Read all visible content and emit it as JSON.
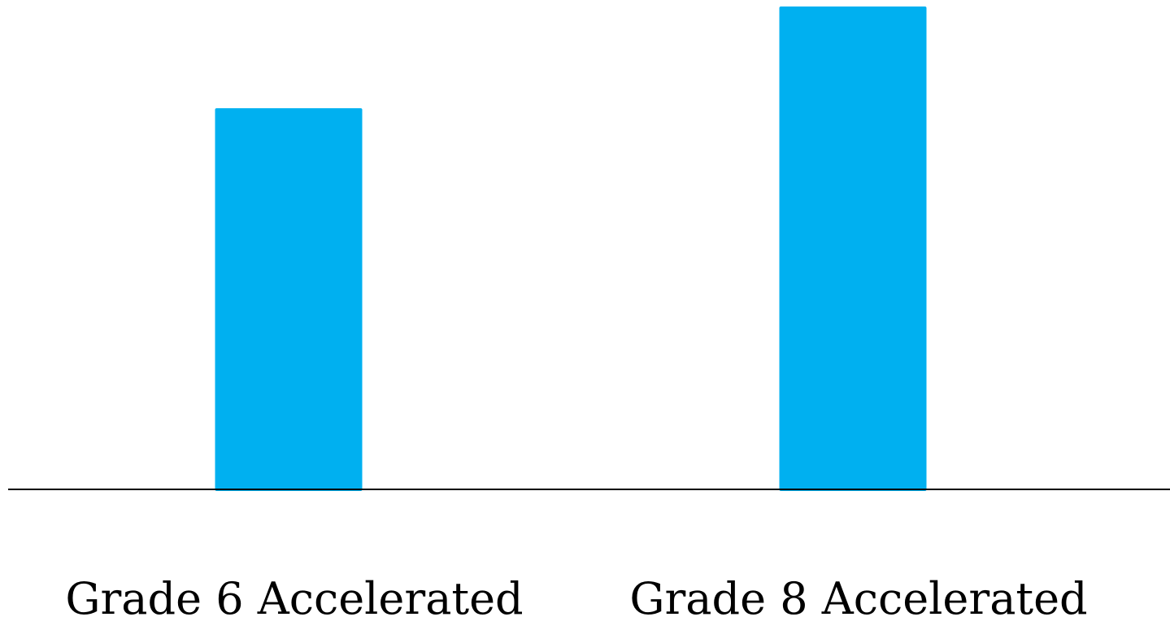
{
  "chart_data": {
    "type": "bar",
    "categories": [
      "Grade 6 Accelerated",
      "Grade 8 Accelerated"
    ],
    "values": [
      79,
      100
    ],
    "ylim": [
      0,
      100
    ],
    "title": "",
    "xlabel": "",
    "ylabel": "",
    "grid": false,
    "legend": "none",
    "bar_color": "#00b0f0",
    "axis_color": "#000000"
  }
}
